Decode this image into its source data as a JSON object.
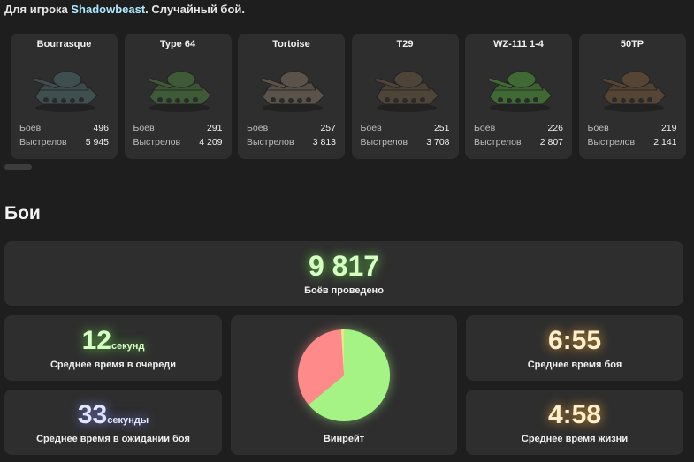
{
  "header": {
    "prefix": "Для игрока",
    "player": "Shadowbeast",
    "suffix": ". Случайный бой."
  },
  "tanks": [
    {
      "name": "Bourrasque",
      "battles_label": "Боёв",
      "battles": "496",
      "shots_label": "Выстрелов",
      "shots": "5 945",
      "color": "#3f4f50"
    },
    {
      "name": "Type 64",
      "battles_label": "Боёв",
      "battles": "291",
      "shots_label": "Выстрелов",
      "shots": "4 209",
      "color": "#3e5a36"
    },
    {
      "name": "Tortoise",
      "battles_label": "Боёв",
      "battles": "257",
      "shots_label": "Выстрелов",
      "shots": "3 813",
      "color": "#5b524a"
    },
    {
      "name": "T29",
      "battles_label": "Боёв",
      "battles": "251",
      "shots_label": "Выстрелов",
      "shots": "3 708",
      "color": "#4e4538"
    },
    {
      "name": "WZ-111 1-4",
      "battles_label": "Боёв",
      "battles": "226",
      "shots_label": "Выстрелов",
      "shots": "2 807",
      "color": "#406a33"
    },
    {
      "name": "50TP",
      "battles_label": "Боёв",
      "battles": "219",
      "shots_label": "Выстрелов",
      "shots": "2 141",
      "color": "#564535"
    }
  ],
  "section_title": "Бои",
  "battles_total": {
    "value": "9 817",
    "label": "Боёв проведено"
  },
  "queue_time": {
    "value": "12",
    "unit": "секунд",
    "label": "Среднее время в очереди"
  },
  "wait_time": {
    "value": "33",
    "unit": "секунды",
    "label": "Среднее время в ожидании боя"
  },
  "winrate": {
    "label": "Винрейт",
    "win_fraction": 0.64,
    "loss_fraction": 0.35,
    "draw_fraction": 0.01,
    "win_color": "#a4f384",
    "loss_color": "#ff8a8a",
    "draw_color": "#e8e68a"
  },
  "battle_time": {
    "value": "6:55",
    "label": "Среднее время боя"
  },
  "life_time": {
    "value": "4:58",
    "label": "Среднее время жизни"
  }
}
